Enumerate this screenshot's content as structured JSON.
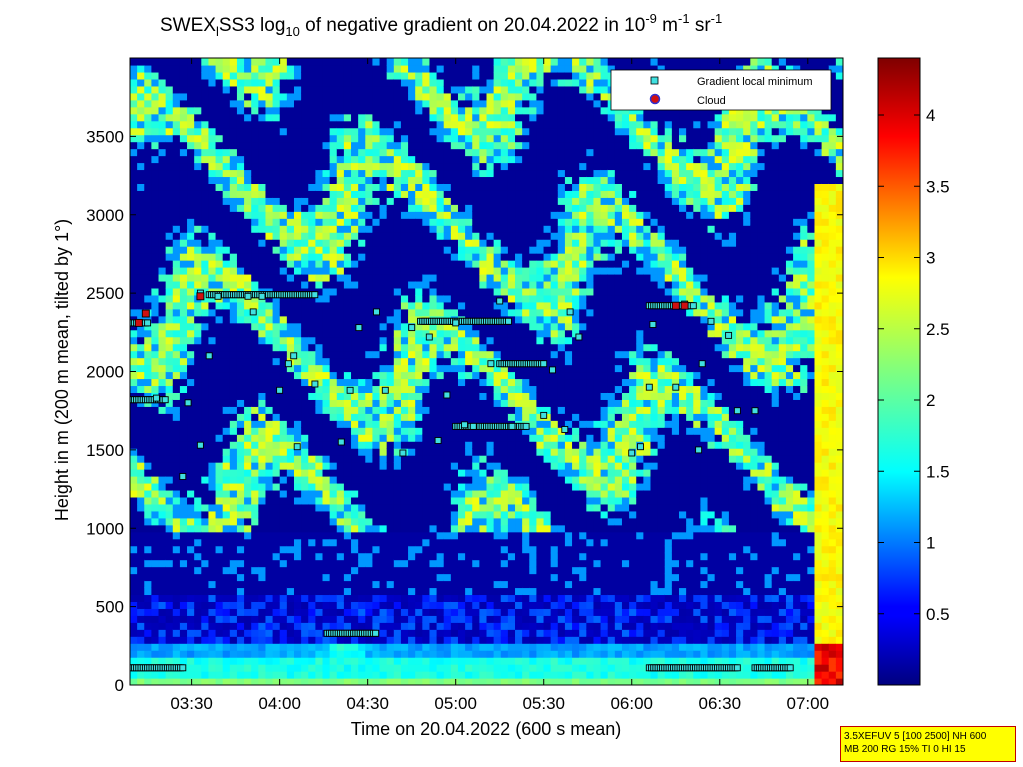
{
  "chart_data": {
    "type": "heatmap",
    "title_main": "SWEX",
    "title_sub1": "l",
    "title_mid": "SS3 log",
    "title_sub2": "10",
    "title_rest": " of negative gradient on 20.04.2022 in 10",
    "title_exp1": "-9",
    "title_unit": " m",
    "title_exp2": "-1",
    "title_unit2": " sr",
    "title_exp3": "-1",
    "xlabel": "Time on 20.04.2022 (600 s mean)",
    "ylabel": "Height in m (200 m mean, tilted by 1°)",
    "x_range_hours": [
      3.15,
      7.2
    ],
    "x_ticks": [
      "03:30",
      "04:00",
      "04:30",
      "05:00",
      "05:30",
      "06:00",
      "06:30",
      "07:00"
    ],
    "y_range": [
      0,
      4000
    ],
    "y_ticks": [
      0,
      500,
      1000,
      1500,
      2000,
      2500,
      3000,
      3500
    ],
    "colorbar_range": [
      0,
      4.4
    ],
    "colorbar_ticks": [
      0.5,
      1,
      1.5,
      2,
      2.5,
      3,
      3.5,
      4
    ],
    "colormap": "jet",
    "legend": {
      "placement": "top-right",
      "entries": [
        {
          "label": "Gradient local minimum",
          "marker": "square",
          "color": "#40e0e0"
        },
        {
          "label": "Cloud",
          "marker": "circle",
          "color": "#d01010"
        }
      ]
    },
    "layer_minima": [
      {
        "x": 3.3,
        "y": 1830
      },
      {
        "x": 3.45,
        "y": 1330
      },
      {
        "x": 3.48,
        "y": 1800
      },
      {
        "x": 3.55,
        "y": 1530
      },
      {
        "x": 3.6,
        "y": 2100
      },
      {
        "x": 3.55,
        "y": 2500
      },
      {
        "x": 3.65,
        "y": 2480
      },
      {
        "x": 3.82,
        "y": 2480
      },
      {
        "x": 3.9,
        "y": 2480
      },
      {
        "x": 4.0,
        "y": 1880
      },
      {
        "x": 4.05,
        "y": 2050
      },
      {
        "x": 4.1,
        "y": 1520
      },
      {
        "x": 4.08,
        "y": 2100
      },
      {
        "x": 4.2,
        "y": 1920
      },
      {
        "x": 4.35,
        "y": 1550
      },
      {
        "x": 4.4,
        "y": 1880
      },
      {
        "x": 4.45,
        "y": 2280
      },
      {
        "x": 4.55,
        "y": 2380
      },
      {
        "x": 4.6,
        "y": 1880
      },
      {
        "x": 4.7,
        "y": 1480
      },
      {
        "x": 4.75,
        "y": 2280
      },
      {
        "x": 4.85,
        "y": 2220
      },
      {
        "x": 4.9,
        "y": 1560
      },
      {
        "x": 4.95,
        "y": 1850
      },
      {
        "x": 5.0,
        "y": 2310
      },
      {
        "x": 5.05,
        "y": 1660
      },
      {
        "x": 5.1,
        "y": 1650
      },
      {
        "x": 5.2,
        "y": 2050
      },
      {
        "x": 5.25,
        "y": 2450
      },
      {
        "x": 5.32,
        "y": 1650
      },
      {
        "x": 5.5,
        "y": 1720
      },
      {
        "x": 5.55,
        "y": 2010
      },
      {
        "x": 5.62,
        "y": 1630
      },
      {
        "x": 5.65,
        "y": 2380
      },
      {
        "x": 6.0,
        "y": 1480
      },
      {
        "x": 6.05,
        "y": 1520
      },
      {
        "x": 6.1,
        "y": 1900
      },
      {
        "x": 6.12,
        "y": 2300
      },
      {
        "x": 6.25,
        "y": 1900
      },
      {
        "x": 6.3,
        "y": 2430
      },
      {
        "x": 6.38,
        "y": 1500
      },
      {
        "x": 6.4,
        "y": 2050
      },
      {
        "x": 6.45,
        "y": 2320
      },
      {
        "x": 6.55,
        "y": 2230
      },
      {
        "x": 6.6,
        "y": 1750
      },
      {
        "x": 6.7,
        "y": 1750
      },
      {
        "x": 3.85,
        "y": 2380
      },
      {
        "x": 5.7,
        "y": 2220
      }
    ],
    "layer_trails": [
      {
        "x0": 3.15,
        "x1": 3.45,
        "y": 110
      },
      {
        "x0": 6.1,
        "x1": 6.6,
        "y": 110
      },
      {
        "x0": 6.7,
        "x1": 6.9,
        "y": 110
      },
      {
        "x0": 4.27,
        "x1": 4.55,
        "y": 330
      },
      {
        "x0": 3.15,
        "x1": 3.35,
        "y": 1820
      },
      {
        "x0": 3.15,
        "x1": 3.25,
        "y": 2310
      },
      {
        "x0": 3.6,
        "x1": 4.2,
        "y": 2490
      },
      {
        "x0": 4.8,
        "x1": 5.3,
        "y": 2320
      },
      {
        "x0": 5.0,
        "x1": 5.4,
        "y": 1650
      },
      {
        "x0": 5.25,
        "x1": 5.5,
        "y": 2050
      },
      {
        "x0": 6.1,
        "x1": 6.35,
        "y": 2420
      }
    ],
    "clouds": [
      {
        "x": 3.2,
        "y": 2310
      },
      {
        "x": 3.24,
        "y": 2370
      },
      {
        "x": 3.55,
        "y": 2480
      },
      {
        "x": 6.25,
        "y": 2420
      },
      {
        "x": 6.3,
        "y": 2420
      }
    ]
  },
  "info_box": {
    "line1": "3.5XEFUV 5 [100 2500] NH 600",
    "line2": "MB 200 RG 15% TI 0 HI 15"
  }
}
